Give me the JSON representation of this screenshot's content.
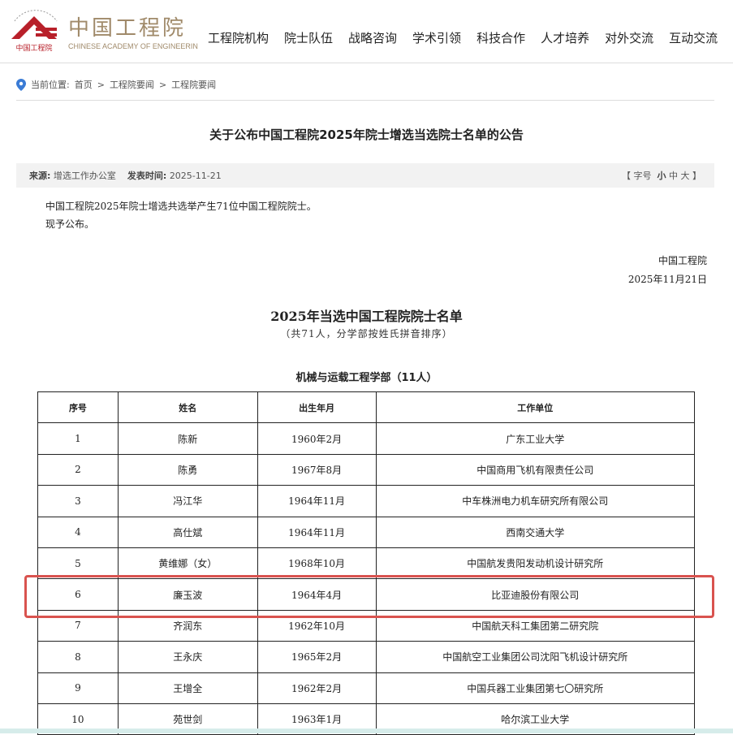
{
  "header": {
    "logo_cn": "中国工程院",
    "logo_en": "CHINESE ACADEMY OF ENGINEERING",
    "logo_ring": "CHINESE ACADEMY OF ENGINEERING",
    "logo_small": "中国工程院",
    "nav": [
      "工程院机构",
      "院士队伍",
      "战略咨询",
      "学术引领",
      "科技合作",
      "人才培养",
      "对外交流",
      "互动交流"
    ],
    "brand_color": "#b8202a"
  },
  "breadcrumb": {
    "label": "当前位置:",
    "items": [
      "首页",
      "工程院要闻",
      "工程院要闻"
    ],
    "sep": ">"
  },
  "article": {
    "title": "关于公布中国工程院2025年院士增选当选院士名单的公告",
    "source_label": "来源:",
    "source": "增选工作办公室",
    "date_label": "发表时间:",
    "date": "2025-11-21",
    "font_size": {
      "open": "【",
      "label": "字号",
      "small": "小",
      "medium": "中",
      "large": "大",
      "close": "】"
    },
    "para1": "中国工程院2025年院士增选共选举产生71位中国工程院院士。",
    "para2": "现予公布。",
    "sign_org": "中国工程院",
    "sign_date": "2025年11月21日",
    "list_title": "2025年当选中国工程院院士名单",
    "list_subtitle": "（共71人，分学部按姓氏拼音排序）",
    "dept": "机械与运载工程学部（11人）"
  },
  "table": {
    "headers": [
      "序号",
      "姓名",
      "出生年月",
      "工作单位"
    ],
    "rows": [
      [
        "1",
        "陈新",
        "1960年2月",
        "广东工业大学"
      ],
      [
        "2",
        "陈勇",
        "1967年8月",
        "中国商用飞机有限责任公司"
      ],
      [
        "3",
        "冯江华",
        "1964年11月",
        "中车株洲电力机车研究所有限公司"
      ],
      [
        "4",
        "高仕斌",
        "1964年11月",
        "西南交通大学"
      ],
      [
        "5",
        "黄维娜（女）",
        "1968年10月",
        "中国航发贵阳发动机设计研究所"
      ],
      [
        "6",
        "廉玉波",
        "1964年4月",
        "比亚迪股份有限公司"
      ],
      [
        "7",
        "齐润东",
        "1962年10月",
        "中国航天科工集团第二研究院"
      ],
      [
        "8",
        "王永庆",
        "1965年2月",
        "中国航空工业集团公司沈阳飞机设计研究所"
      ],
      [
        "9",
        "王增全",
        "1962年2月",
        "中国兵器工业集团第七〇研究所"
      ],
      [
        "10",
        "苑世剑",
        "1963年1月",
        "哈尔滨工业大学"
      ]
    ],
    "highlight_color": "#d9534f"
  }
}
